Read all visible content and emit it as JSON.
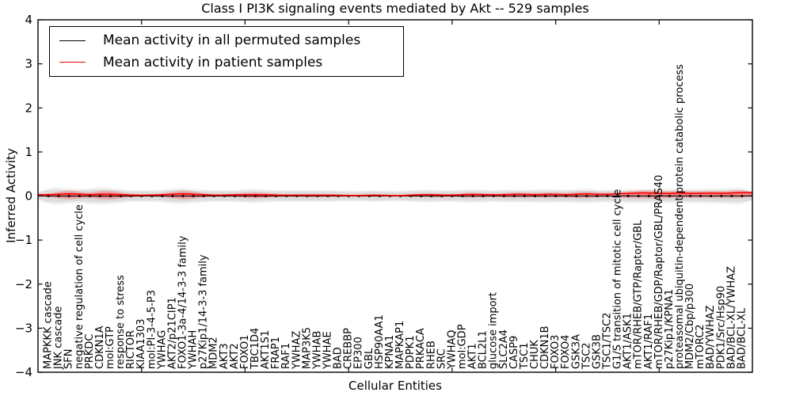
{
  "title": "Class I PI3K signaling events mediated by Akt -- 529 samples",
  "axes": {
    "ylabel": "Inferred Activity",
    "xlabel": "Cellular Entities",
    "yticks": [
      "4",
      "3",
      "2",
      "1",
      "0",
      "−1",
      "−2",
      "−3",
      "−4"
    ],
    "ylim": [
      -4,
      4
    ]
  },
  "legend": {
    "items": [
      {
        "label": "Mean activity in all permuted samples",
        "color": "#000000",
        "swatch": "line-swatch"
      },
      {
        "label": "Mean activity in patient samples",
        "color": "#ff0000",
        "swatch": "line-swatch"
      }
    ],
    "position": "upper left"
  },
  "colors": {
    "permuted_line": "#000000",
    "patient_line": "#ff0000",
    "permuted_band": "#d9d9d9",
    "patient_band": "#ff0000",
    "frame": "#000000",
    "background": "#ffffff"
  },
  "chart_data": {
    "type": "line",
    "title": "Class I PI3K signaling events mediated by Akt -- 529 samples",
    "xlabel": "Cellular Entities",
    "ylabel": "Inferred Activity",
    "ylim": [
      -4,
      4
    ],
    "grid": false,
    "legend_position": "upper left",
    "categories": [
      "MAPKKK cascade",
      "JNK cascade",
      "SFN",
      "negative regulation of cell cycle",
      "PRKDC",
      "CDKN1A",
      "mol:GTP",
      "response to stress",
      "RICTOR",
      "KIAA1303",
      "mol:PI-3-4-5-P3",
      "YWHAG",
      "AKT2/p21CIP1",
      "FOXO1-3a-4/14-3-3 family",
      "YWHAH",
      "p27Kip1/14-3-3 family",
      "MDM2",
      "AKT3",
      "AKT2",
      "FOXO1",
      "TBC1D4",
      "AKT1S1",
      "FRAP1",
      "RAF1",
      "YWHAZ",
      "MAP3K5",
      "YWHAB",
      "YWHAE",
      "BAD",
      "CREBBP",
      "EP300",
      "GBL",
      "HSP90AA1",
      "KPNA1",
      "MAPKAP1",
      "PDPK1",
      "PRKACA",
      "RHEB",
      "SRC",
      "YWHAQ",
      "mol:GDP",
      "AKT1",
      "BCL2L1",
      "glucose import",
      "SLC2A4",
      "CASP9",
      "TSC1",
      "CHUK",
      "CDKN1B",
      "FOXO3",
      "FOXO4",
      "GSK3A",
      "TSC2",
      "GSK3B",
      "TSC1/TSC2",
      "G1/S transition of mitotic cell cycle",
      "AKT1/ASK1",
      "mTOR/RHEB/GTP/Raptor/GBL",
      "AKT1/RAF1",
      "mTOR/RHEB/GDP/Raptor/GBL/PRAS40",
      "p27Kip1/KPNA1",
      "proteasomal ubiquitin-dependent protein catabolic process",
      "MDM2/Cbp/p300",
      "mTORC2",
      "BAD/YWHAZ",
      "PDK1/Src/Hsp90",
      "BAD/BCL-XL/YWHAZ",
      "BAD/BCL-XL"
    ],
    "series": [
      {
        "name": "Mean activity in all permuted samples",
        "color": "#000000",
        "values": [
          0,
          0,
          0,
          0,
          0,
          0,
          0,
          0,
          0,
          0,
          0,
          0,
          0,
          0,
          0,
          0,
          0,
          0,
          0,
          0,
          0,
          0,
          0,
          0,
          0,
          0,
          0,
          0,
          0,
          0,
          0,
          0,
          0,
          0,
          0,
          0,
          0,
          0,
          0,
          0,
          0,
          0,
          0,
          0,
          0,
          0,
          0,
          0,
          0,
          0,
          0,
          0,
          0,
          0,
          0,
          0,
          0,
          0,
          0,
          0,
          0,
          0,
          0,
          0,
          0,
          0,
          0,
          0
        ]
      },
      {
        "name": "Mean activity in patient samples",
        "color": "#ff0000",
        "values": [
          0.03,
          0.04,
          0.05,
          0.04,
          0.03,
          0.04,
          0.04,
          0.03,
          0.02,
          0.02,
          0.02,
          0.03,
          0.04,
          0.05,
          0.04,
          0.03,
          0.02,
          0.02,
          0.03,
          0.03,
          0.03,
          0.03,
          0.02,
          0.02,
          0.02,
          0.02,
          0.02,
          0.02,
          0.02,
          0.01,
          0.01,
          0.02,
          0.02,
          0.01,
          0.01,
          0.02,
          0.03,
          0.03,
          0.02,
          0.02,
          0.03,
          0.04,
          0.03,
          0.03,
          0.03,
          0.04,
          0.04,
          0.03,
          0.04,
          0.04,
          0.03,
          0.04,
          0.05,
          0.04,
          0.04,
          0.05,
          0.06,
          0.07,
          0.07,
          0.06,
          0.06,
          0.07,
          0.06,
          0.06,
          0.07,
          0.06,
          0.07,
          0.08
        ]
      }
    ],
    "permuted_spread": [
      0.14,
      0.15,
      0.13,
      0.12,
      0.14,
      0.15,
      0.14,
      0.12,
      0.1,
      0.1,
      0.1,
      0.11,
      0.13,
      0.14,
      0.12,
      0.11,
      0.1,
      0.1,
      0.1,
      0.12,
      0.12,
      0.11,
      0.1,
      0.1,
      0.1,
      0.1,
      0.1,
      0.1,
      0.1,
      0.09,
      0.09,
      0.1,
      0.1,
      0.09,
      0.09,
      0.1,
      0.11,
      0.11,
      0.1,
      0.1,
      0.11,
      0.12,
      0.11,
      0.1,
      0.11,
      0.11,
      0.11,
      0.11,
      0.12,
      0.11,
      0.11,
      0.12,
      0.13,
      0.11,
      0.11,
      0.11,
      0.12,
      0.12,
      0.12,
      0.12,
      0.12,
      0.13,
      0.12,
      0.12,
      0.13,
      0.13,
      0.14,
      0.15
    ],
    "patient_spread": [
      0.04,
      0.08,
      0.11,
      0.08,
      0.06,
      0.1,
      0.11,
      0.07,
      0.04,
      0.03,
      0.03,
      0.04,
      0.08,
      0.11,
      0.09,
      0.05,
      0.03,
      0.03,
      0.04,
      0.06,
      0.07,
      0.06,
      0.04,
      0.03,
      0.03,
      0.04,
      0.04,
      0.03,
      0.03,
      0.02,
      0.02,
      0.03,
      0.03,
      0.02,
      0.02,
      0.03,
      0.04,
      0.05,
      0.04,
      0.03,
      0.05,
      0.06,
      0.05,
      0.04,
      0.05,
      0.06,
      0.06,
      0.05,
      0.06,
      0.06,
      0.05,
      0.07,
      0.08,
      0.06,
      0.05,
      0.06,
      0.08,
      0.09,
      0.1,
      0.09,
      0.08,
      0.09,
      0.08,
      0.08,
      0.09,
      0.08,
      0.09,
      0.1
    ]
  }
}
